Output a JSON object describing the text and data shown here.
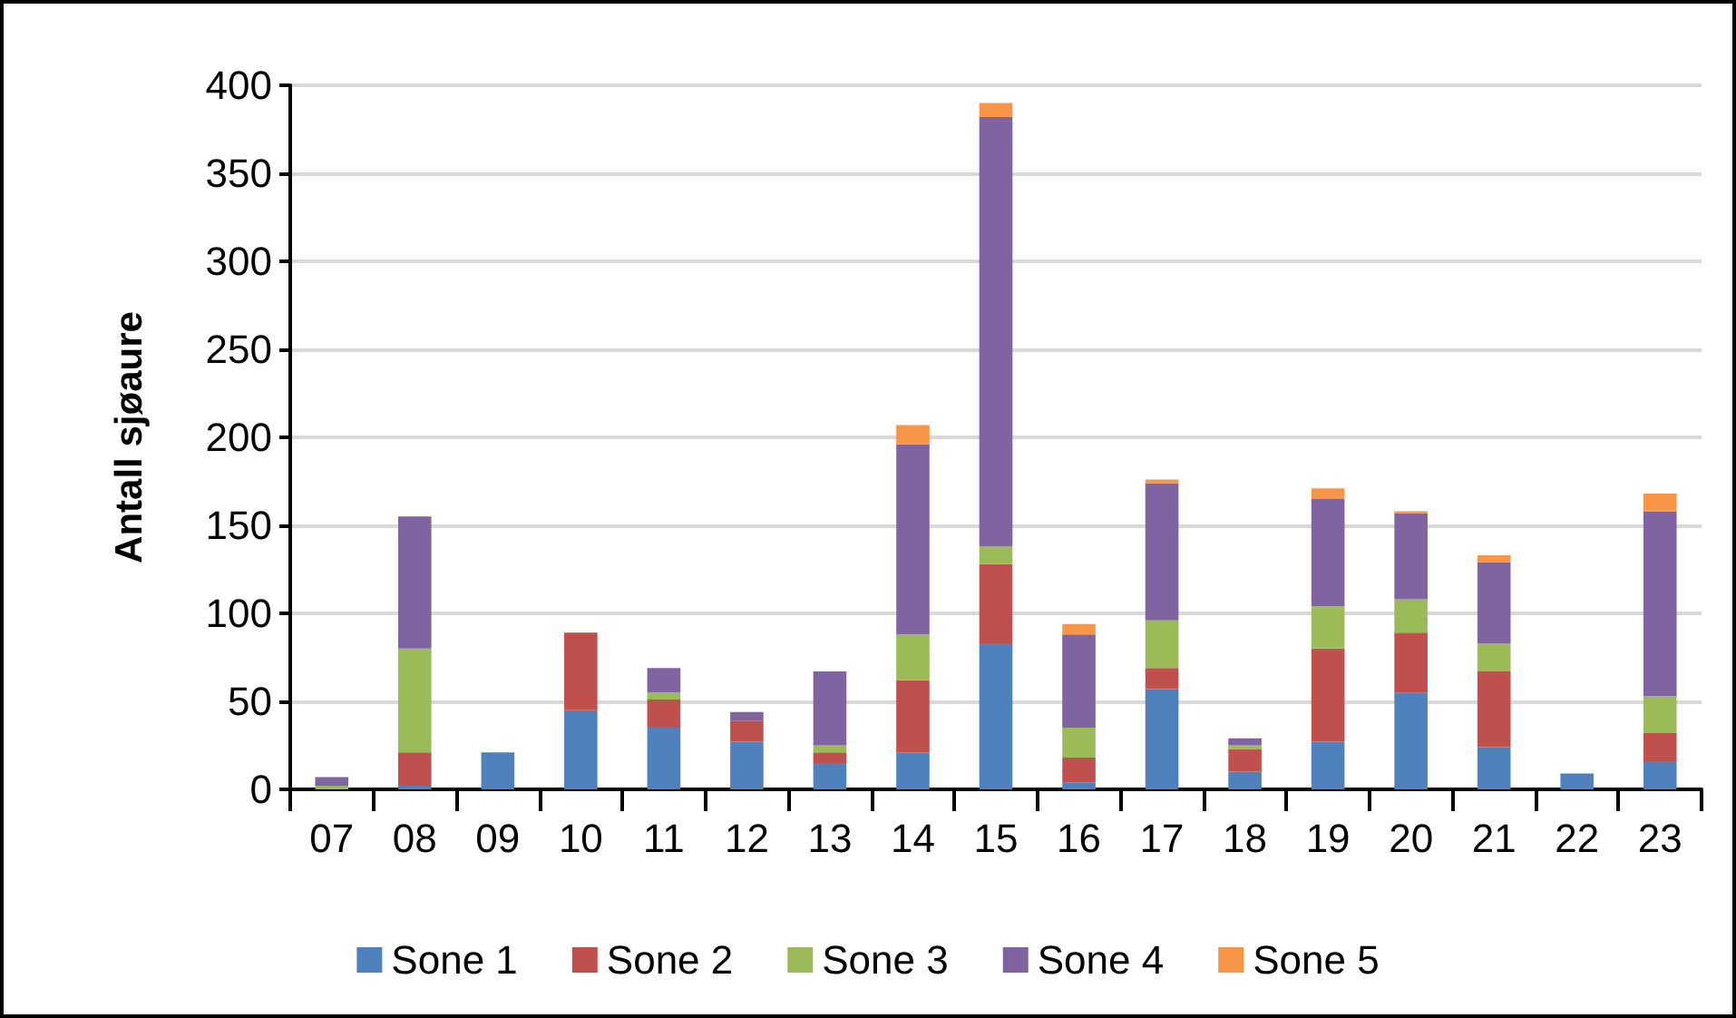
{
  "chart_data": {
    "type": "bar",
    "stacked": true,
    "ylabel": "Antall sjøaure",
    "categories": [
      "07",
      "08",
      "09",
      "10",
      "11",
      "12",
      "13",
      "14",
      "15",
      "16",
      "17",
      "18",
      "19",
      "20",
      "21",
      "22",
      "23"
    ],
    "series": [
      {
        "name": "Sone 1",
        "color": "#4f81bd",
        "values": [
          null,
          2,
          21,
          45,
          35,
          27,
          15,
          21,
          83,
          4,
          57,
          10,
          27,
          55,
          24,
          9,
          16
        ]
      },
      {
        "name": "Sone 2",
        "color": "#c0504d",
        "values": [
          null,
          19,
          null,
          44,
          16,
          12,
          6,
          41,
          45,
          14,
          12,
          13,
          53,
          34,
          43,
          null,
          16
        ]
      },
      {
        "name": "Sone 3",
        "color": "#9bbb59",
        "values": [
          2,
          59,
          null,
          null,
          4,
          null,
          4,
          26,
          10,
          17,
          27,
          2,
          24,
          19,
          16,
          null,
          21
        ]
      },
      {
        "name": "Sone 4",
        "color": "#8064a2",
        "values": [
          5,
          75,
          null,
          null,
          14,
          5,
          42,
          108,
          244,
          53,
          78,
          4,
          61,
          49,
          46,
          null,
          105
        ]
      },
      {
        "name": "Sone 5",
        "color": "#f79646",
        "values": [
          null,
          null,
          null,
          null,
          null,
          null,
          null,
          11,
          8,
          6,
          2,
          null,
          6,
          1,
          4,
          null,
          10
        ]
      }
    ],
    "ylim": [
      0,
      400
    ],
    "yticks": [
      0,
      50,
      100,
      150,
      200,
      250,
      300,
      350,
      400
    ],
    "grid": "y",
    "legend": "bottom"
  }
}
